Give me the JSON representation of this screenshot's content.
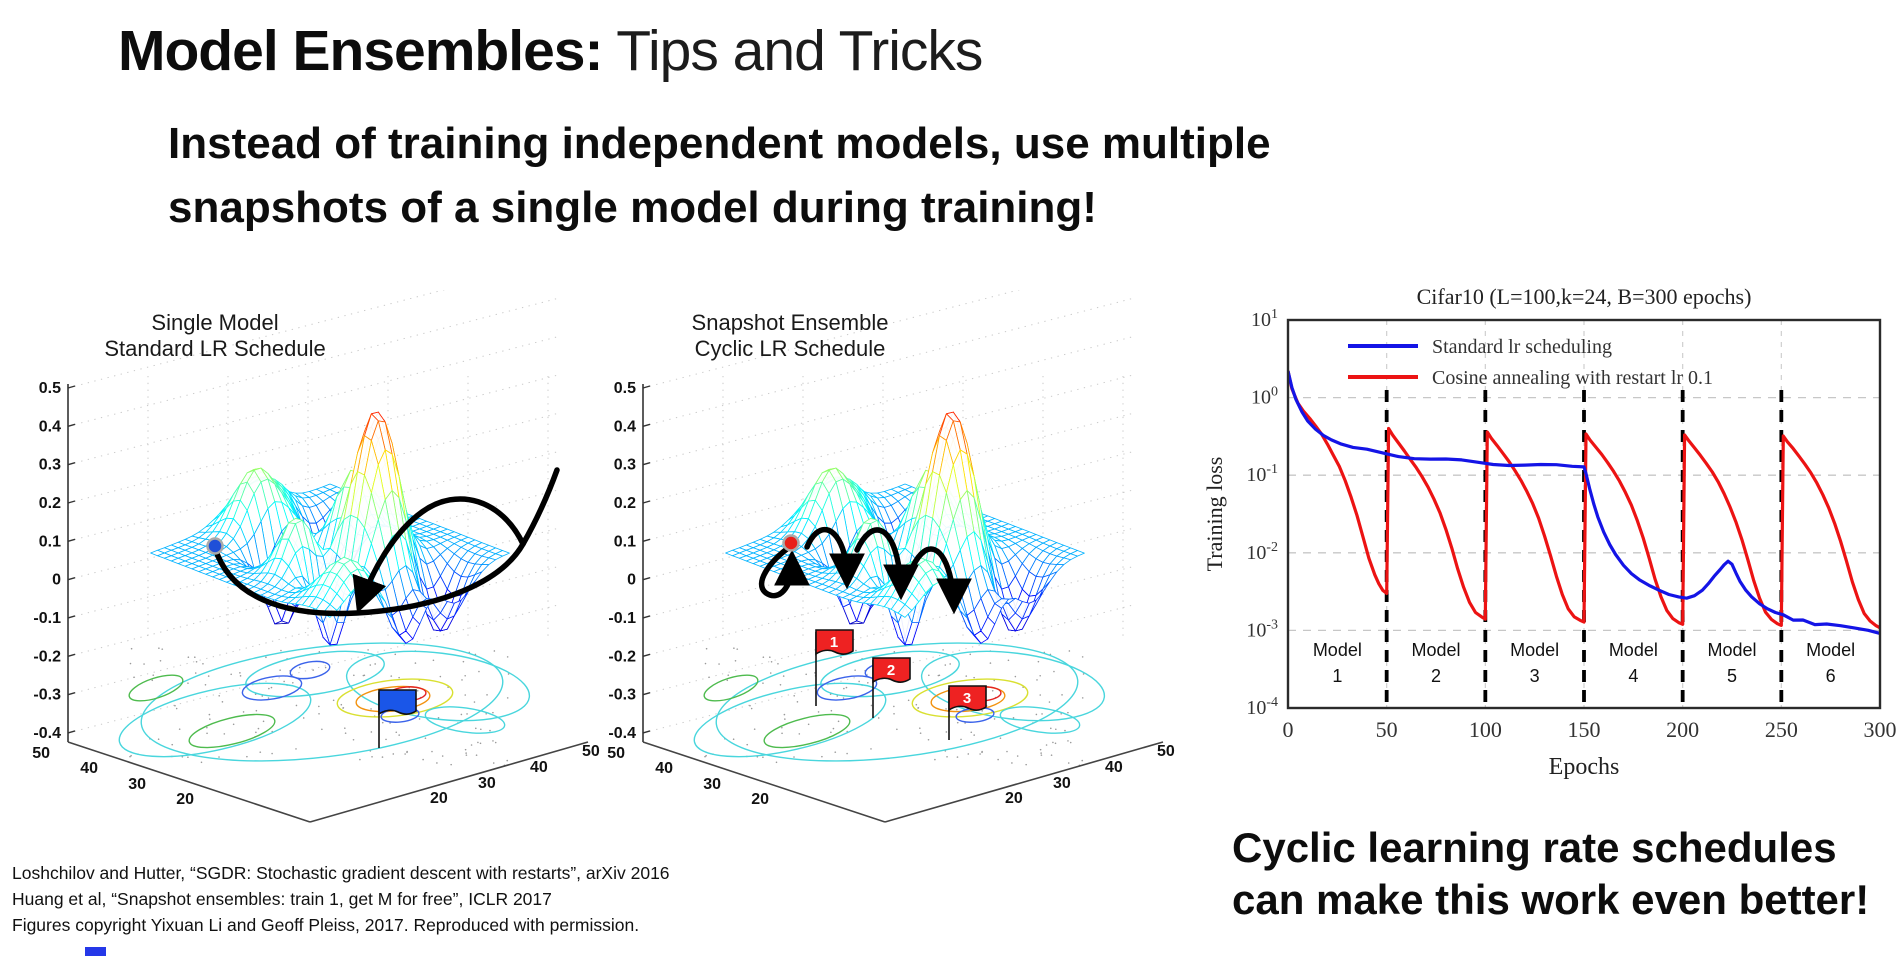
{
  "slide": {
    "title_strong": "Model Ensembles:",
    "title_light": " Tips and Tricks",
    "subtitle_line1": "Instead of training independent models, use multiple",
    "subtitle_line2": "snapshots of a single model during training!",
    "note_line1": "Cyclic learning rate schedules",
    "note_line2": "can make this work even better!",
    "citations": [
      "Loshchilov and Hutter, “SGDR: Stochastic gradient descent with restarts”, arXiv 2016",
      "Huang et al, “Snapshot ensembles: train 1, get M for free”, ICLR 2017",
      "Figures copyright Yixuan Li and Geoff Pleiss, 2017. Reproduced with permission."
    ]
  },
  "figures": {
    "single_model": {
      "title_line1": "Single Model",
      "title_line2": "Standard LR Schedule",
      "y_ticks": [
        "0.5",
        "0.4",
        "0.3",
        "0.2",
        "0.1",
        "0",
        "-0.1",
        "-0.2",
        "-0.3",
        "-0.4"
      ],
      "floor_ticks_left": [
        "50",
        "40",
        "30",
        "20"
      ],
      "floor_ticks_right": [
        "50",
        "40",
        "30",
        "20"
      ],
      "marker_color": "#1f4fd8",
      "flag_color": "#1a56e8",
      "flag_labels": []
    },
    "snapshot": {
      "title_line1": "Snapshot Ensemble",
      "title_line2": "Cyclic LR Schedule",
      "y_ticks": [
        "0.5",
        "0.4",
        "0.3",
        "0.2",
        "0.1",
        "0",
        "-0.1",
        "-0.2",
        "-0.3",
        "-0.4"
      ],
      "floor_ticks_left": [
        "50",
        "40",
        "30",
        "20"
      ],
      "floor_ticks_right": [
        "50",
        "40",
        "30",
        "20"
      ],
      "marker_color": "#e8201a",
      "flag_color": "#ee2222",
      "flag_labels": [
        "1",
        "2",
        "3"
      ]
    }
  },
  "chart_data": [
    {
      "type": "surface3d",
      "title": "Single Model Standard LR Schedule",
      "z_ticks": [
        0.5,
        0.4,
        0.3,
        0.2,
        0.1,
        0,
        -0.1,
        -0.2,
        -0.3,
        -0.4
      ],
      "floor_ticks": [
        50,
        40,
        30,
        20
      ],
      "annotations": "blue start marker on ridge, single long black SGD trajectory looping into one minimum, blue flag planted at final minimum on contour plot"
    },
    {
      "type": "surface3d",
      "title": "Snapshot Ensemble Cyclic LR Schedule",
      "z_ticks": [
        0.5,
        0.4,
        0.3,
        0.2,
        0.1,
        0,
        -0.1,
        -0.2,
        -0.3,
        -0.4
      ],
      "floor_ticks": [
        50,
        40,
        30,
        20
      ],
      "annotations": "red start marker, black trajectory hopping between minima with cyclic restarts, red flags 1,2,3 planted at visited minima on contour plot"
    },
    {
      "type": "line",
      "title": "Cifar10 (L=100,k=24, B=300 epochs)",
      "xlabel": "Epochs",
      "ylabel": "Training loss",
      "x_ticks": [
        0,
        50,
        100,
        150,
        200,
        250,
        300
      ],
      "y_tick_exponents": [
        "1",
        "0",
        "-1",
        "-2",
        "-3",
        "-4"
      ],
      "y_scale": "log10",
      "ylim_exponents": [
        1,
        -4
      ],
      "xlim": [
        0,
        300
      ],
      "grid": "dashed gray horizontal lines at each decade; heavy black dashed vertical lines at epochs 50,100,150,200,250",
      "legend_position": "top-left",
      "region_labels": [
        "Model 1",
        "Model 2",
        "Model 3",
        "Model 4",
        "Model 5",
        "Model 6"
      ],
      "series": [
        {
          "name": "Standard lr scheduling",
          "color": "#1414e6",
          "points": [
            [
              0,
              2.2
            ],
            [
              2,
              1.35
            ],
            [
              4,
              0.95
            ],
            [
              7,
              0.66
            ],
            [
              10,
              0.5
            ],
            [
              14,
              0.39
            ],
            [
              18,
              0.325
            ],
            [
              22,
              0.285
            ],
            [
              27,
              0.252
            ],
            [
              33,
              0.228
            ],
            [
              40,
              0.208
            ],
            [
              48,
              0.193
            ],
            [
              56,
              0.18
            ],
            [
              64,
              0.17
            ],
            [
              72,
              0.162
            ],
            [
              80,
              0.156
            ],
            [
              88,
              0.151
            ],
            [
              96,
              0.146
            ],
            [
              104,
              0.142
            ],
            [
              112,
              0.139
            ],
            [
              120,
              0.136
            ],
            [
              128,
              0.133
            ],
            [
              136,
              0.131
            ],
            [
              144,
              0.129
            ],
            [
              150,
              0.128
            ],
            [
              151,
              0.105
            ],
            [
              153,
              0.065
            ],
            [
              155,
              0.042
            ],
            [
              157,
              0.029
            ],
            [
              160,
              0.0185
            ],
            [
              163,
              0.0128
            ],
            [
              166,
              0.0095
            ],
            [
              170,
              0.0069
            ],
            [
              174,
              0.0054
            ],
            [
              178,
              0.0045
            ],
            [
              183,
              0.0038
            ],
            [
              188,
              0.0033
            ],
            [
              193,
              0.0029
            ],
            [
              198,
              0.0027
            ],
            [
              202,
              0.0026
            ],
            [
              206,
              0.0028
            ],
            [
              210,
              0.0033
            ],
            [
              213,
              0.004
            ],
            [
              216,
              0.005
            ],
            [
              219,
              0.0061
            ],
            [
              221,
              0.007
            ],
            [
              223,
              0.0078
            ],
            [
              225,
              0.0071
            ],
            [
              227,
              0.0055
            ],
            [
              229,
              0.0043
            ],
            [
              232,
              0.0033
            ],
            [
              235,
              0.0027
            ],
            [
              239,
              0.0022
            ],
            [
              243,
              0.0019
            ],
            [
              247,
              0.0017
            ],
            [
              251,
              0.00155
            ],
            [
              256,
              0.00142
            ],
            [
              261,
              0.00132
            ],
            [
              267,
              0.00124
            ],
            [
              273,
              0.00117
            ],
            [
              280,
              0.0011
            ],
            [
              287,
              0.00104
            ],
            [
              294,
              0.00099
            ],
            [
              300,
              0.00095
            ]
          ]
        },
        {
          "name": "Cosine annealing with restart lr 0.1",
          "color": "#ec1313",
          "points": [
            [
              0,
              2.2
            ],
            [
              2,
              1.3
            ],
            [
              5,
              0.85
            ],
            [
              8,
              0.66
            ],
            [
              11,
              0.54
            ],
            [
              14,
              0.43
            ],
            [
              17,
              0.34
            ],
            [
              20,
              0.25
            ],
            [
              23,
              0.18
            ],
            [
              26,
              0.13
            ],
            [
              29,
              0.085
            ],
            [
              32,
              0.052
            ],
            [
              35,
              0.03
            ],
            [
              38,
              0.016
            ],
            [
              41,
              0.0085
            ],
            [
              44,
              0.0052
            ],
            [
              46,
              0.004
            ],
            [
              48,
              0.0033
            ],
            [
              50,
              0.003
            ],
            [
              51,
              0.4
            ],
            [
              53,
              0.33
            ],
            [
              56,
              0.26
            ],
            [
              59,
              0.205
            ],
            [
              62,
              0.16
            ],
            [
              65,
              0.125
            ],
            [
              68,
              0.095
            ],
            [
              71,
              0.07
            ],
            [
              74,
              0.049
            ],
            [
              77,
              0.033
            ],
            [
              80,
              0.02
            ],
            [
              83,
              0.0115
            ],
            [
              86,
              0.0062
            ],
            [
              89,
              0.0036
            ],
            [
              92,
              0.0023
            ],
            [
              95,
              0.0017
            ],
            [
              98,
              0.0015
            ],
            [
              100,
              0.0014
            ],
            [
              101,
              0.36
            ],
            [
              103,
              0.3
            ],
            [
              106,
              0.24
            ],
            [
              109,
              0.19
            ],
            [
              112,
              0.15
            ],
            [
              115,
              0.115
            ],
            [
              118,
              0.086
            ],
            [
              121,
              0.062
            ],
            [
              124,
              0.043
            ],
            [
              127,
              0.028
            ],
            [
              130,
              0.0165
            ],
            [
              133,
              0.0092
            ],
            [
              136,
              0.005
            ],
            [
              139,
              0.0029
            ],
            [
              142,
              0.0019
            ],
            [
              145,
              0.0015
            ],
            [
              148,
              0.00135
            ],
            [
              150,
              0.00128
            ],
            [
              151,
              0.34
            ],
            [
              153,
              0.285
            ],
            [
              156,
              0.23
            ],
            [
              159,
              0.185
            ],
            [
              162,
              0.145
            ],
            [
              165,
              0.112
            ],
            [
              168,
              0.084
            ],
            [
              171,
              0.06
            ],
            [
              174,
              0.041
            ],
            [
              177,
              0.026
            ],
            [
              180,
              0.0155
            ],
            [
              183,
              0.0086
            ],
            [
              186,
              0.0046
            ],
            [
              189,
              0.0027
            ],
            [
              192,
              0.0018
            ],
            [
              195,
              0.00142
            ],
            [
              198,
              0.00126
            ],
            [
              200,
              0.0012
            ],
            [
              201,
              0.33
            ],
            [
              203,
              0.28
            ],
            [
              206,
              0.225
            ],
            [
              209,
              0.18
            ],
            [
              212,
              0.142
            ],
            [
              215,
              0.11
            ],
            [
              218,
              0.082
            ],
            [
              221,
              0.058
            ],
            [
              224,
              0.039
            ],
            [
              227,
              0.025
            ],
            [
              230,
              0.0148
            ],
            [
              233,
              0.0082
            ],
            [
              236,
              0.0044
            ],
            [
              239,
              0.0026
            ],
            [
              242,
              0.00172
            ],
            [
              245,
              0.00138
            ],
            [
              248,
              0.00122
            ],
            [
              250,
              0.00116
            ],
            [
              251,
              0.32
            ],
            [
              253,
              0.27
            ],
            [
              256,
              0.22
            ],
            [
              259,
              0.175
            ],
            [
              262,
              0.138
            ],
            [
              265,
              0.107
            ],
            [
              268,
              0.079
            ],
            [
              271,
              0.056
            ],
            [
              274,
              0.038
            ],
            [
              277,
              0.024
            ],
            [
              280,
              0.0142
            ],
            [
              283,
              0.0078
            ],
            [
              286,
              0.0042
            ],
            [
              289,
              0.0025
            ],
            [
              292,
              0.00165
            ],
            [
              295,
              0.00132
            ],
            [
              298,
              0.00115
            ],
            [
              300,
              0.00108
            ]
          ]
        }
      ]
    }
  ]
}
